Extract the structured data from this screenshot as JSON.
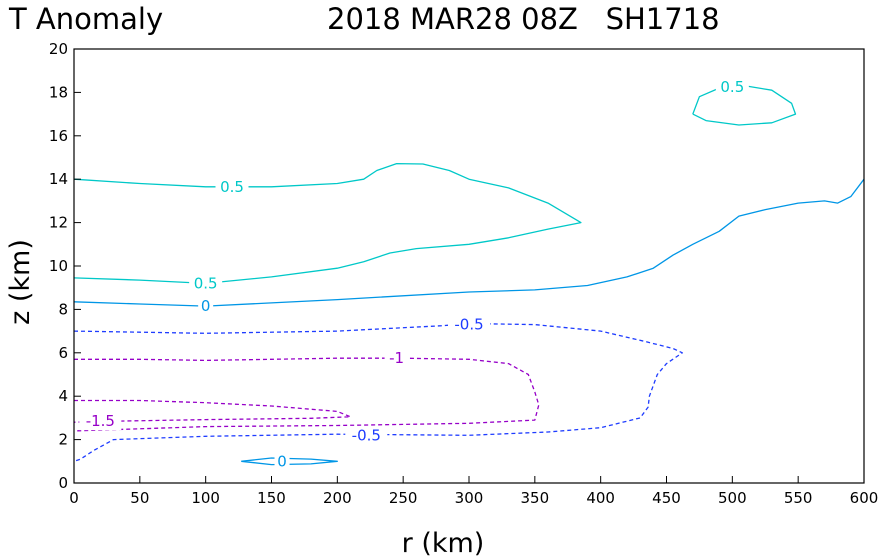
{
  "chart_data": {
    "type": "contour",
    "title_left": "T Anomaly",
    "title_right": "2018 MAR28 08Z   SH1718",
    "xlabel": "r (km)",
    "ylabel": "z (km)",
    "xlim": [
      0,
      600
    ],
    "ylim": [
      0,
      20
    ],
    "xticks": [
      "0",
      "50",
      "100",
      "150",
      "200",
      "250",
      "300",
      "350",
      "400",
      "450",
      "500",
      "550",
      "600"
    ],
    "yticks": [
      "0",
      "2",
      "4",
      "6",
      "8",
      "10",
      "12",
      "14",
      "16",
      "18",
      "20"
    ],
    "contours": [
      {
        "level": "0.5",
        "color": "#00c8c8",
        "dashed": false,
        "points": [
          [
            0,
            14.0
          ],
          [
            50,
            13.8
          ],
          [
            100,
            13.65
          ],
          [
            150,
            13.65
          ],
          [
            200,
            13.8
          ],
          [
            220,
            14.0
          ],
          [
            230,
            14.4
          ],
          [
            245,
            14.72
          ],
          [
            265,
            14.7
          ],
          [
            285,
            14.4
          ],
          [
            300,
            14.0
          ],
          [
            330,
            13.6
          ],
          [
            360,
            12.9
          ],
          [
            385,
            12.0
          ],
          [
            360,
            11.7
          ],
          [
            330,
            11.3
          ],
          [
            300,
            11.0
          ],
          [
            260,
            10.8
          ],
          [
            240,
            10.6
          ],
          [
            220,
            10.2
          ],
          [
            200,
            9.9
          ],
          [
            150,
            9.5
          ],
          [
            100,
            9.2
          ],
          [
            50,
            9.35
          ],
          [
            0,
            9.45
          ]
        ],
        "labels": [
          [
            120,
            13.65
          ],
          [
            100,
            9.2
          ]
        ]
      },
      {
        "level": "0.5",
        "color": "#00c8c8",
        "dashed": false,
        "points": [
          [
            470,
            17.0
          ],
          [
            475,
            17.8
          ],
          [
            490,
            18.2
          ],
          [
            510,
            18.3
          ],
          [
            530,
            18.1
          ],
          [
            545,
            17.5
          ],
          [
            548,
            17.0
          ],
          [
            530,
            16.6
          ],
          [
            505,
            16.5
          ],
          [
            480,
            16.7
          ],
          [
            470,
            17.0
          ]
        ],
        "labels": [
          [
            500,
            18.25
          ]
        ]
      },
      {
        "level": "0",
        "color": "#0096e6",
        "dashed": false,
        "points": [
          [
            0,
            8.35
          ],
          [
            50,
            8.25
          ],
          [
            100,
            8.15
          ],
          [
            150,
            8.3
          ],
          [
            200,
            8.45
          ],
          [
            300,
            8.8
          ],
          [
            350,
            8.9
          ],
          [
            390,
            9.1
          ],
          [
            420,
            9.5
          ],
          [
            440,
            9.9
          ],
          [
            455,
            10.5
          ],
          [
            470,
            11.0
          ],
          [
            490,
            11.6
          ],
          [
            505,
            12.3
          ],
          [
            525,
            12.6
          ],
          [
            550,
            12.9
          ],
          [
            570,
            13.0
          ],
          [
            580,
            12.9
          ],
          [
            590,
            13.2
          ],
          [
            600,
            14.0
          ]
        ],
        "labels": [
          [
            100,
            8.15
          ]
        ]
      },
      {
        "level": "0",
        "color": "#0096e6",
        "dashed": false,
        "points": [
          [
            127,
            1.0
          ],
          [
            150,
            1.15
          ],
          [
            180,
            1.1
          ],
          [
            200,
            1.0
          ],
          [
            180,
            0.88
          ],
          [
            150,
            0.85
          ],
          [
            127,
            1.0
          ]
        ],
        "labels": [
          [
            158,
            1.0
          ]
        ]
      },
      {
        "level": "-0.5",
        "color": "#1e3cff",
        "dashed": true,
        "points": [
          [
            0,
            7.0
          ],
          [
            50,
            6.95
          ],
          [
            100,
            6.9
          ],
          [
            200,
            7.0
          ],
          [
            280,
            7.25
          ],
          [
            300,
            7.35
          ],
          [
            350,
            7.3
          ],
          [
            400,
            7.0
          ],
          [
            435,
            6.5
          ],
          [
            455,
            6.2
          ],
          [
            462,
            6.0
          ],
          [
            450,
            5.5
          ],
          [
            443,
            5.0
          ],
          [
            440,
            4.5
          ],
          [
            437,
            4.0
          ],
          [
            436,
            3.5
          ],
          [
            430,
            3.0
          ],
          [
            400,
            2.55
          ],
          [
            360,
            2.35
          ],
          [
            300,
            2.2
          ],
          [
            200,
            2.25
          ],
          [
            100,
            2.15
          ],
          [
            30,
            2.0
          ],
          [
            15,
            1.5
          ],
          [
            5,
            1.1
          ],
          [
            0,
            1.0
          ]
        ],
        "labels": [
          [
            300,
            7.3
          ],
          [
            222,
            2.2
          ]
        ]
      },
      {
        "level": "-1",
        "color": "#9600c8",
        "dashed": true,
        "points": [
          [
            0,
            5.7
          ],
          [
            50,
            5.7
          ],
          [
            100,
            5.65
          ],
          [
            150,
            5.7
          ],
          [
            200,
            5.75
          ],
          [
            250,
            5.75
          ],
          [
            300,
            5.7
          ],
          [
            330,
            5.5
          ],
          [
            345,
            5.0
          ],
          [
            350,
            4.2
          ],
          [
            353,
            3.6
          ],
          [
            350,
            2.9
          ],
          [
            300,
            2.75
          ],
          [
            200,
            2.65
          ],
          [
            100,
            2.6
          ],
          [
            50,
            2.5
          ],
          [
            0,
            2.4
          ]
        ],
        "labels": [
          [
            245,
            5.75
          ]
        ]
      },
      {
        "level": "-1.5",
        "color": "#9600c8",
        "dashed": true,
        "points": [
          [
            0,
            3.8
          ],
          [
            50,
            3.8
          ],
          [
            100,
            3.7
          ],
          [
            150,
            3.55
          ],
          [
            200,
            3.3
          ],
          [
            210,
            3.05
          ],
          [
            180,
            2.98
          ],
          [
            100,
            2.92
          ],
          [
            30,
            2.85
          ],
          [
            0,
            2.8
          ]
        ],
        "labels": [
          [
            20,
            2.85
          ]
        ]
      }
    ]
  }
}
